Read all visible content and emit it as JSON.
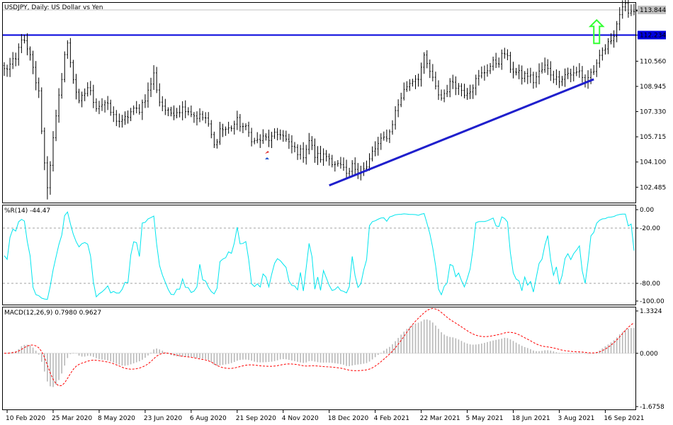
{
  "window": {
    "title": "USDJPY, Daily:  US Dollar vs Yen"
  },
  "colors": {
    "background": "#ffffff",
    "candle": "#000000",
    "level_line": "#0000dd",
    "trend_line": "#1f1fcc",
    "arrow": "#33ff33",
    "current_price_line": "#c0c0c0",
    "oscillator": "#00e5ee",
    "macd_histogram": "#b8b8b8",
    "macd_signal": "#ff0000",
    "level_dotted": "#a0a0a0"
  },
  "chart_data": [
    {
      "type": "candlestick",
      "title": "USDJPY, Daily:  US Dollar vs Yen",
      "ylim": [
        101.5,
        114.3
      ],
      "y_ticks": [
        "113.780",
        "112.234",
        "110.560",
        "108.945",
        "107.330",
        "105.715",
        "104.100",
        "102.485"
      ],
      "current_price": {
        "value": 113.844,
        "label": "113.844"
      },
      "horizontal_level": {
        "value": 112.234,
        "label": "112.234"
      },
      "trend_line": {
        "from": {
          "x": "18 Dec 2020",
          "y": 102.6
        },
        "to": {
          "x": "3 Aug 2021",
          "y": 109.4
        }
      },
      "arrow": {
        "x": "16 Sep 2021",
        "y_from": 111.7,
        "y_to": 113.2,
        "direction": "up"
      },
      "x_ticks": [
        "10 Feb 2020",
        "25 Mar 2020",
        "8 May 2020",
        "23 Jun 2020",
        "6 Aug 2020",
        "21 Sep 2020",
        "4 Nov 2020",
        "18 Dec 2020",
        "4 Feb 2021",
        "22 Mar 2021",
        "5 May 2021",
        "18 Jun 2021",
        "3 Aug 2021",
        "16 Sep 2021"
      ],
      "close_path": [
        [
          0,
          110.0
        ],
        [
          4,
          110.6
        ],
        [
          6,
          112.1
        ],
        [
          9,
          110.8
        ],
        [
          12,
          108.5
        ],
        [
          14,
          104.0
        ],
        [
          15,
          102.6
        ],
        [
          17,
          105.5
        ],
        [
          19,
          108.2
        ],
        [
          21,
          111.0
        ],
        [
          22,
          111.6
        ],
        [
          24,
          109.5
        ],
        [
          26,
          107.8
        ],
        [
          29,
          108.9
        ],
        [
          32,
          107.7
        ],
        [
          35,
          107.9
        ],
        [
          38,
          107.0
        ],
        [
          41,
          106.6
        ],
        [
          44,
          107.3
        ],
        [
          47,
          107.5
        ],
        [
          50,
          108.6
        ],
        [
          52,
          109.7
        ],
        [
          54,
          108.0
        ],
        [
          57,
          107.2
        ],
        [
          60,
          107.4
        ],
        [
          63,
          107.6
        ],
        [
          66,
          107.1
        ],
        [
          70,
          106.9
        ],
        [
          72,
          105.8
        ],
        [
          73,
          105.1
        ],
        [
          75,
          106.2
        ],
        [
          78,
          106.2
        ],
        [
          81,
          106.7
        ],
        [
          84,
          106.2
        ],
        [
          87,
          105.4
        ],
        [
          90,
          105.6
        ],
        [
          93,
          105.6
        ],
        [
          96,
          106.0
        ],
        [
          99,
          105.2
        ],
        [
          102,
          104.8
        ],
        [
          104,
          104.6
        ],
        [
          106,
          105.5
        ],
        [
          108,
          104.5
        ],
        [
          110,
          104.4
        ],
        [
          112,
          104.5
        ],
        [
          114,
          104.2
        ],
        [
          116,
          103.9
        ],
        [
          118,
          103.6
        ],
        [
          119,
          103.1
        ],
        [
          121,
          103.8
        ],
        [
          124,
          103.6
        ],
        [
          126,
          103.7
        ],
        [
          128,
          104.7
        ],
        [
          130,
          105.2
        ],
        [
          132,
          105.6
        ],
        [
          134,
          106.0
        ],
        [
          136,
          107.3
        ],
        [
          138,
          108.3
        ],
        [
          140,
          109.0
        ],
        [
          142,
          109.4
        ],
        [
          144,
          109.6
        ],
        [
          146,
          110.7
        ],
        [
          148,
          109.9
        ],
        [
          150,
          108.8
        ],
        [
          152,
          108.2
        ],
        [
          154,
          108.8
        ],
        [
          156,
          109.3
        ],
        [
          158,
          108.9
        ],
        [
          160,
          108.6
        ],
        [
          162,
          108.8
        ],
        [
          164,
          109.3
        ],
        [
          166,
          109.7
        ],
        [
          168,
          110.1
        ],
        [
          170,
          110.4
        ],
        [
          172,
          110.6
        ],
        [
          174,
          111.1
        ],
        [
          176,
          110.2
        ],
        [
          178,
          109.8
        ],
        [
          180,
          109.6
        ],
        [
          182,
          109.7
        ],
        [
          184,
          109.3
        ],
        [
          186,
          109.8
        ],
        [
          188,
          110.2
        ],
        [
          190,
          109.8
        ],
        [
          192,
          109.4
        ],
        [
          194,
          109.6
        ],
        [
          196,
          109.8
        ],
        [
          198,
          109.7
        ],
        [
          200,
          109.9
        ],
        [
          202,
          109.3
        ],
        [
          204,
          109.8
        ],
        [
          206,
          110.2
        ],
        [
          208,
          111.2
        ],
        [
          210,
          111.6
        ],
        [
          212,
          112.4
        ],
        [
          214,
          113.6
        ],
        [
          216,
          114.0
        ],
        [
          218,
          113.8
        ],
        [
          219,
          113.8
        ]
      ]
    },
    {
      "type": "line",
      "title": "%R(14) -44.47",
      "series": [
        {
          "name": "%R(14)",
          "last": -44.47
        }
      ],
      "ylim": [
        -100,
        0
      ],
      "y_ticks": [
        "0.00",
        "-20.00",
        "-80.00",
        "-100.00"
      ],
      "levels": [
        -20,
        -80
      ]
    },
    {
      "type": "bar",
      "title": "MACD(12,26,9) 0.7980 0.9627",
      "series": [
        {
          "name": "MACD",
          "last": 0.798
        },
        {
          "name": "Signal",
          "last": 0.9627
        }
      ],
      "ylim": [
        -1.6758,
        1.3324
      ],
      "y_ticks": [
        "1.3324",
        "0.000",
        "-1.6758"
      ]
    }
  ]
}
